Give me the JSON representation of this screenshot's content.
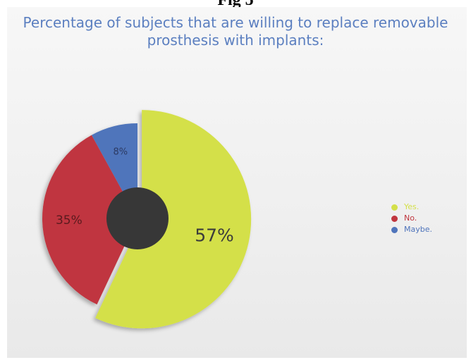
{
  "figure_caption": "Fig 5",
  "chart_data": {
    "type": "pie",
    "title_lines": [
      "Percentage of subjects that are willing to replace removable",
      "prosthesis with implants:"
    ],
    "slices": [
      {
        "label": "Yes.",
        "value": 57,
        "display": "57%",
        "color": "#d4e04a",
        "exploded": true
      },
      {
        "label": "No.",
        "value": 35,
        "display": "35%",
        "color": "#c0363f",
        "exploded": false
      },
      {
        "label": "Maybe.",
        "value": 8,
        "display": "8%",
        "color": "#4f74bb",
        "exploded": false
      }
    ],
    "center_hole_color": "#373737",
    "legend_position": "right"
  }
}
